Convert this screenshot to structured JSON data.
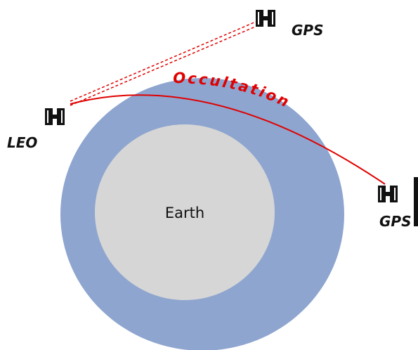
{
  "labels": {
    "gps_top": "GPS",
    "occultation": "Occultation",
    "leo": "LEO",
    "earth": "Earth",
    "gps_right": "GPS"
  }
}
